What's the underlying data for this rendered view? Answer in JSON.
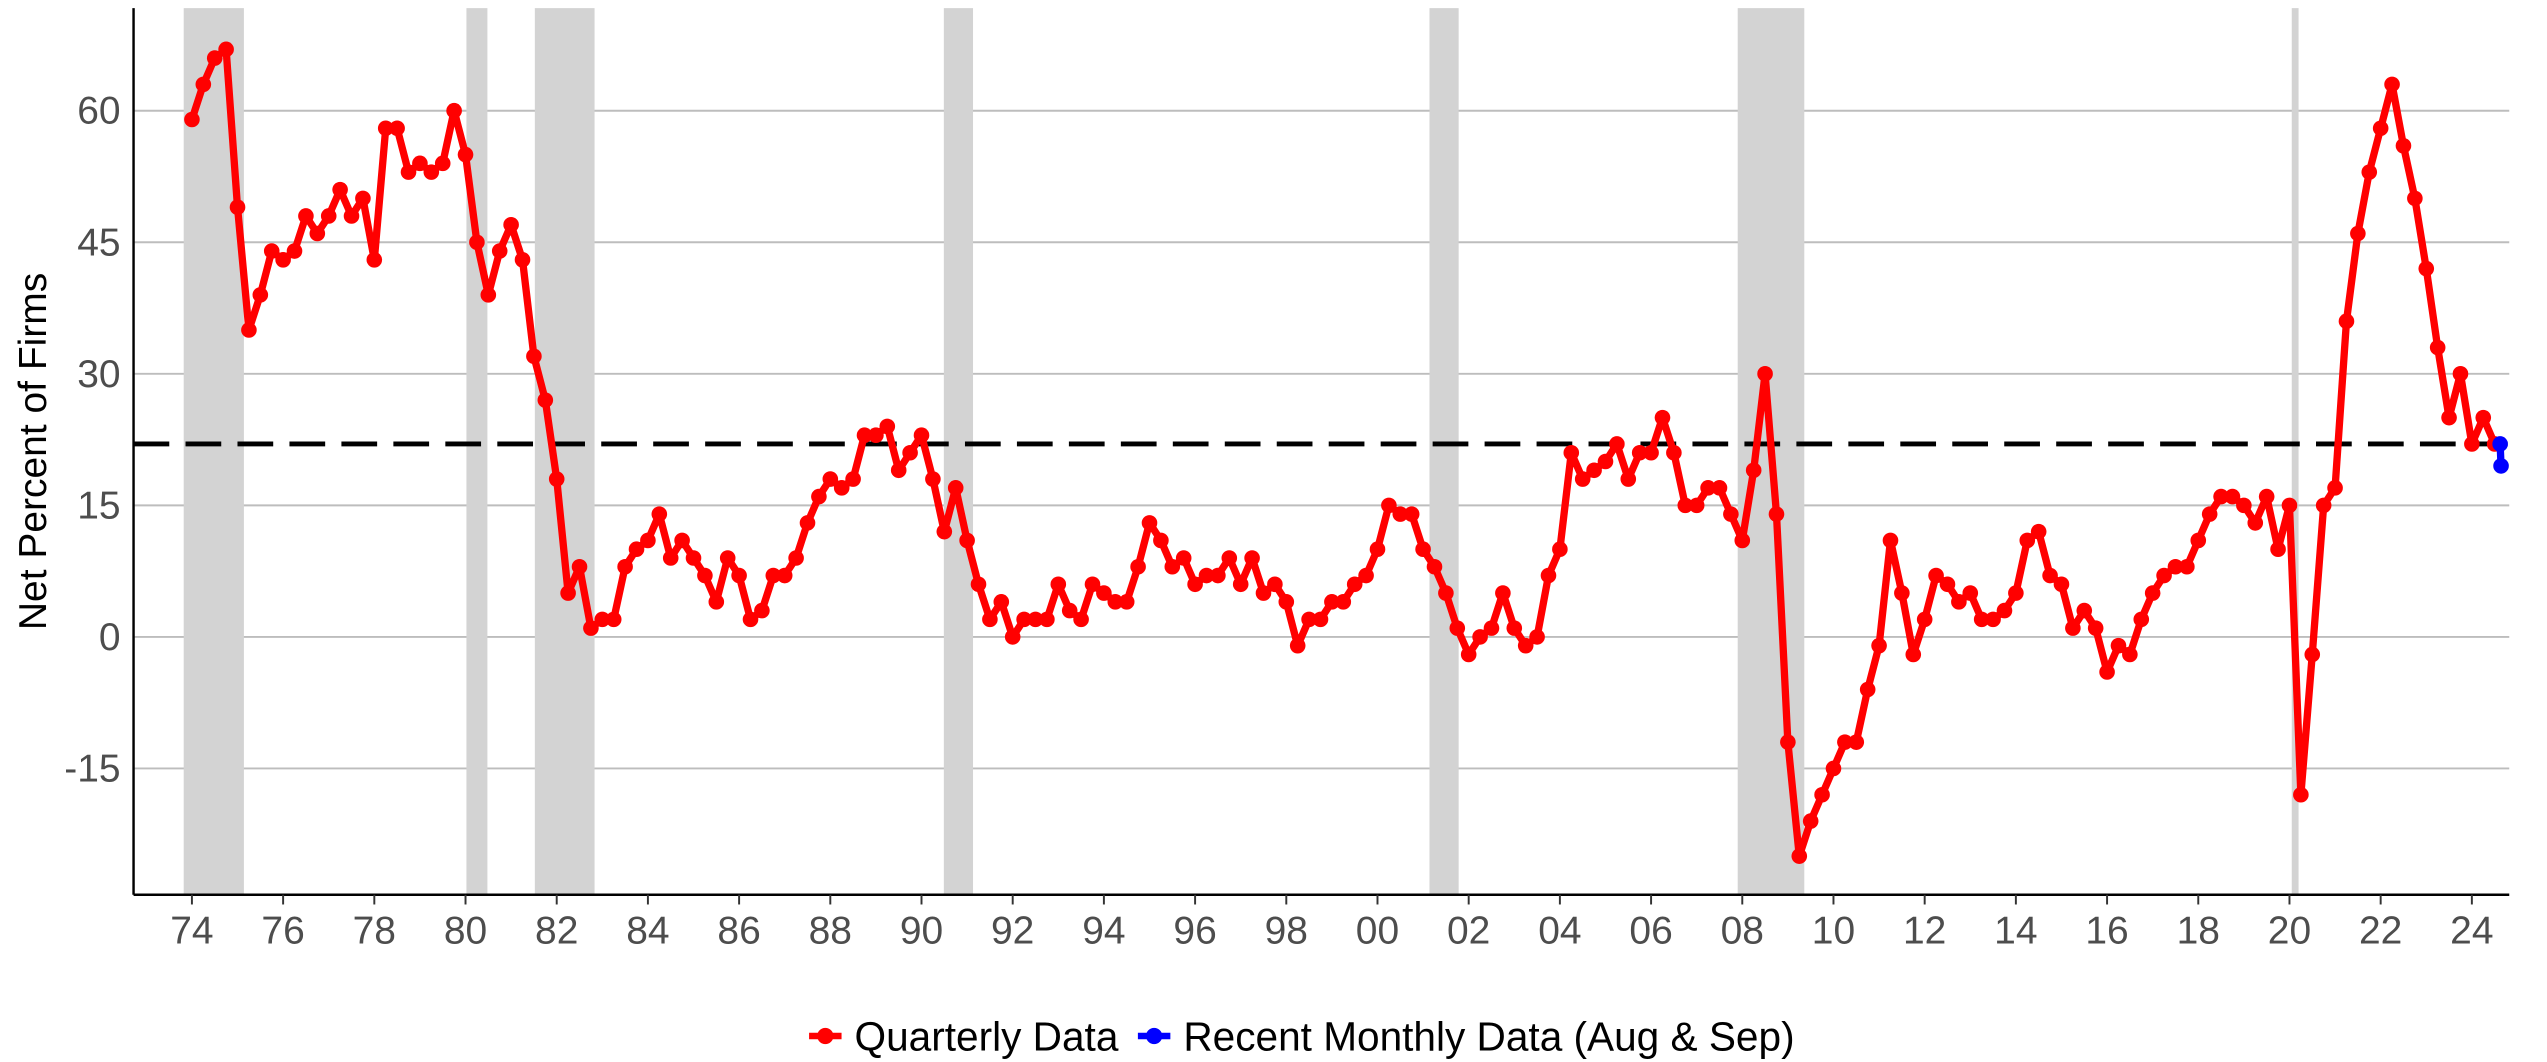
{
  "chart_data": {
    "type": "line",
    "y_label": "Net Percent of Firms",
    "xlim": [
      1972.72,
      2024.82
    ],
    "ylim": [
      -29.4,
      71.7
    ],
    "xticks": [
      {
        "value": 1974,
        "label": "74"
      },
      {
        "value": 1976,
        "label": "76"
      },
      {
        "value": 1978,
        "label": "78"
      },
      {
        "value": 1980,
        "label": "80"
      },
      {
        "value": 1982,
        "label": "82"
      },
      {
        "value": 1984,
        "label": "84"
      },
      {
        "value": 1986,
        "label": "86"
      },
      {
        "value": 1988,
        "label": "88"
      },
      {
        "value": 1990,
        "label": "90"
      },
      {
        "value": 1992,
        "label": "92"
      },
      {
        "value": 1994,
        "label": "94"
      },
      {
        "value": 1996,
        "label": "96"
      },
      {
        "value": 1998,
        "label": "98"
      },
      {
        "value": 2000,
        "label": "00"
      },
      {
        "value": 2002,
        "label": "02"
      },
      {
        "value": 2004,
        "label": "04"
      },
      {
        "value": 2006,
        "label": "06"
      },
      {
        "value": 2008,
        "label": "08"
      },
      {
        "value": 2010,
        "label": "10"
      },
      {
        "value": 2012,
        "label": "12"
      },
      {
        "value": 2014,
        "label": "14"
      },
      {
        "value": 2016,
        "label": "16"
      },
      {
        "value": 2018,
        "label": "18"
      },
      {
        "value": 2020,
        "label": "20"
      },
      {
        "value": 2022,
        "label": "22"
      },
      {
        "value": 2024,
        "label": "24"
      }
    ],
    "yticks": [
      -15,
      0,
      15,
      30,
      45,
      60
    ],
    "grid": true,
    "legend": "bottom",
    "reference_line": 22,
    "recessions": [
      [
        1973.82,
        1975.14
      ],
      [
        1980.02,
        1980.48
      ],
      [
        1981.52,
        1982.83
      ],
      [
        1990.49,
        1991.13
      ],
      [
        2001.14,
        2001.78
      ],
      [
        2007.9,
        2009.36
      ],
      [
        2020.05,
        2020.2
      ]
    ],
    "series": [
      {
        "name": "Quarterly Data",
        "color": "#ff0000",
        "x": [
          1974,
          1974.25,
          1974.5,
          1974.75,
          1975,
          1975.25,
          1975.5,
          1975.75,
          1976,
          1976.25,
          1976.5,
          1976.75,
          1977,
          1977.25,
          1977.5,
          1977.75,
          1978,
          1978.25,
          1978.5,
          1978.75,
          1979,
          1979.25,
          1979.5,
          1979.75,
          1980,
          1980.25,
          1980.5,
          1980.75,
          1981,
          1981.25,
          1981.5,
          1981.75,
          1982,
          1982.25,
          1982.5,
          1982.75,
          1983,
          1983.25,
          1983.5,
          1983.75,
          1984,
          1984.25,
          1984.5,
          1984.75,
          1985,
          1985.25,
          1985.5,
          1985.75,
          1986,
          1986.25,
          1986.5,
          1986.75,
          1987,
          1987.25,
          1987.5,
          1987.75,
          1988,
          1988.25,
          1988.5,
          1988.75,
          1989,
          1989.25,
          1989.5,
          1989.75,
          1990,
          1990.25,
          1990.5,
          1990.75,
          1991,
          1991.25,
          1991.5,
          1991.75,
          1992,
          1992.25,
          1992.5,
          1992.75,
          1993,
          1993.25,
          1993.5,
          1993.75,
          1994,
          1994.25,
          1994.5,
          1994.75,
          1995,
          1995.25,
          1995.5,
          1995.75,
          1996,
          1996.25,
          1996.5,
          1996.75,
          1997,
          1997.25,
          1997.5,
          1997.75,
          1998,
          1998.25,
          1998.5,
          1998.75,
          1999,
          1999.25,
          1999.5,
          1999.75,
          2000,
          2000.25,
          2000.5,
          2000.75,
          2001,
          2001.25,
          2001.5,
          2001.75,
          2002,
          2002.25,
          2002.5,
          2002.75,
          2003,
          2003.25,
          2003.5,
          2003.75,
          2004,
          2004.25,
          2004.5,
          2004.75,
          2005,
          2005.25,
          2005.5,
          2005.75,
          2006,
          2006.25,
          2006.5,
          2006.75,
          2007,
          2007.25,
          2007.5,
          2007.75,
          2008,
          2008.25,
          2008.5,
          2008.75,
          2009,
          2009.25,
          2009.5,
          2009.75,
          2010,
          2010.25,
          2010.5,
          2010.75,
          2011,
          2011.25,
          2011.5,
          2011.75,
          2012,
          2012.25,
          2012.5,
          2012.75,
          2013,
          2013.25,
          2013.5,
          2013.75,
          2014,
          2014.25,
          2014.5,
          2014.75,
          2015,
          2015.25,
          2015.5,
          2015.75,
          2016,
          2016.25,
          2016.5,
          2016.75,
          2017,
          2017.25,
          2017.5,
          2017.75,
          2018,
          2018.25,
          2018.5,
          2018.75,
          2019,
          2019.25,
          2019.5,
          2019.75,
          2020,
          2020.25,
          2020.5,
          2020.75,
          2021,
          2021.25,
          2021.5,
          2021.75,
          2022,
          2022.25,
          2022.5,
          2022.75,
          2023,
          2023.25,
          2023.5,
          2023.75,
          2024,
          2024.25,
          2024.5
        ],
        "values": [
          59,
          63,
          66,
          67,
          49,
          35,
          39,
          44,
          43,
          44,
          48,
          46,
          48,
          51,
          48,
          50,
          43,
          58,
          58,
          53,
          54,
          53,
          54,
          60,
          55,
          45,
          39,
          44,
          47,
          43,
          32,
          27,
          18,
          5,
          8,
          1,
          2,
          2,
          8,
          10,
          11,
          14,
          9,
          11,
          9,
          7,
          4,
          9,
          7,
          2,
          3,
          7,
          7,
          9,
          13,
          16,
          18,
          17,
          18,
          23,
          23,
          24,
          19,
          21,
          23,
          18,
          12,
          17,
          11,
          6,
          2,
          4,
          0,
          2,
          2,
          2,
          6,
          3,
          2,
          6,
          5,
          4,
          4,
          8,
          13,
          11,
          8,
          9,
          6,
          7,
          7,
          9,
          6,
          9,
          5,
          6,
          4,
          -1,
          2,
          2,
          4,
          4,
          6,
          7,
          10,
          15,
          14,
          14,
          10,
          8,
          5,
          1,
          -2,
          0,
          1,
          5,
          1,
          -1,
          0,
          7,
          10,
          21,
          18,
          19,
          20,
          22,
          18,
          21,
          21,
          25,
          21,
          15,
          15,
          17,
          17,
          14,
          11,
          19,
          30,
          14,
          -12,
          -25,
          -21,
          -18,
          -15,
          -12,
          -12,
          -6,
          -1,
          11,
          5,
          -2,
          2,
          7,
          6,
          4,
          5,
          2,
          2,
          3,
          5,
          11,
          12,
          7,
          6,
          1,
          3,
          1,
          -4,
          -1,
          -2,
          2,
          5,
          7,
          8,
          8,
          11,
          14,
          16,
          16,
          15,
          13,
          16,
          10,
          15,
          -18,
          -2,
          15,
          17,
          36,
          46,
          53,
          58,
          63,
          56,
          50,
          42,
          33,
          25,
          30,
          22,
          25,
          22
        ]
      },
      {
        "name": "Recent Monthly Data (Aug & Sep)",
        "color": "#0000ff",
        "x": [
          2024.62,
          2024.64
        ],
        "values": [
          22,
          19.5
        ]
      }
    ]
  }
}
